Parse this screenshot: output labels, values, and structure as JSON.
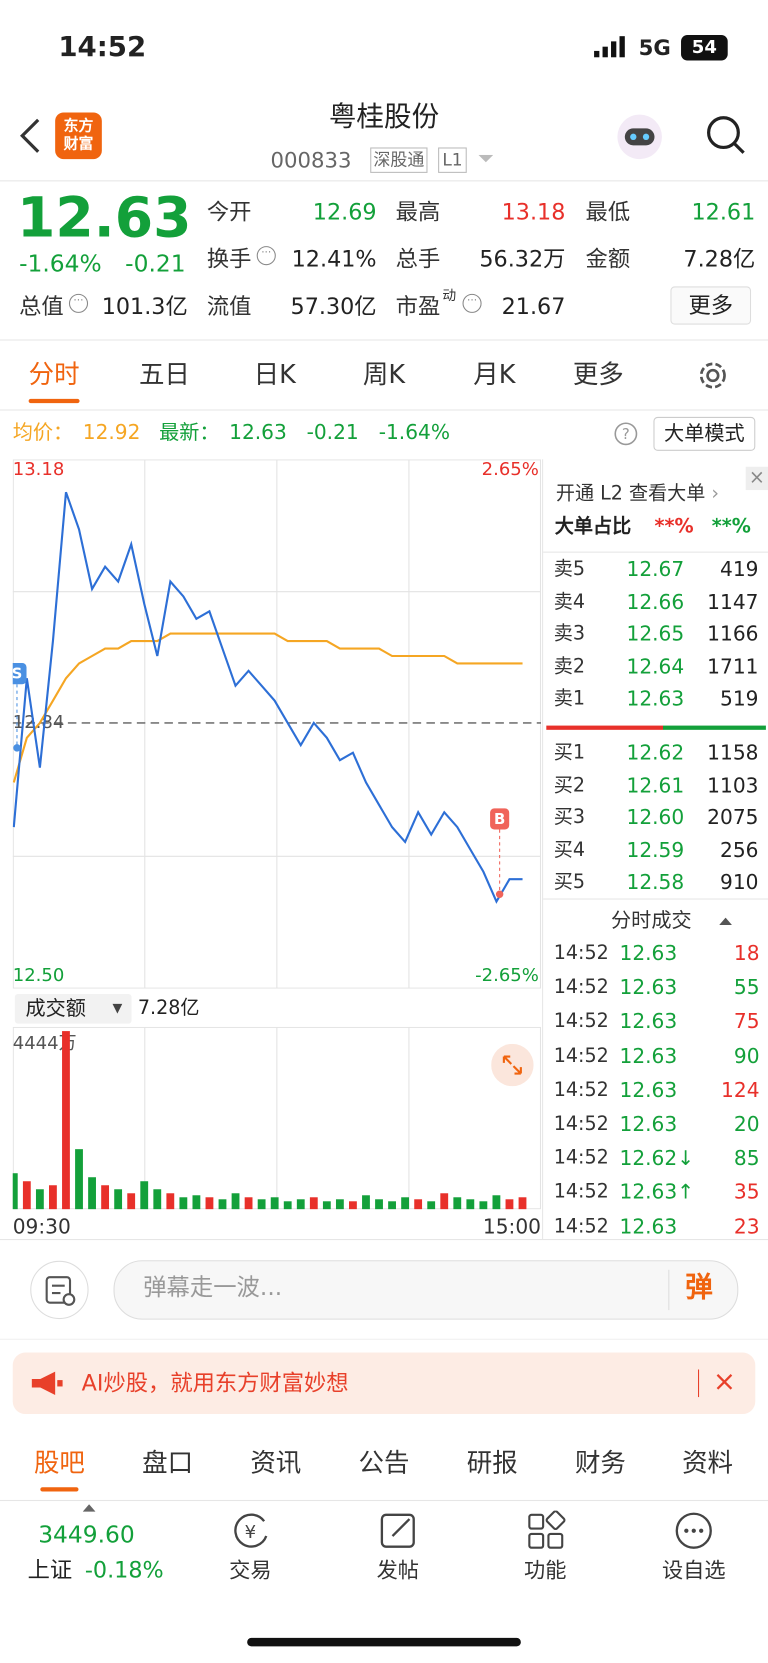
{
  "colors": {
    "up": "#e8302a",
    "down": "#13a03a",
    "accent": "#f0640f",
    "avg": "#f5a623",
    "price": "#2d6fd6"
  },
  "status": {
    "time": "14:52",
    "network": "5G",
    "battery": "54"
  },
  "header": {
    "logo": [
      "东方",
      "财富"
    ],
    "title": "粤桂股份",
    "code": "000833",
    "tags": [
      "深股通",
      "L1"
    ]
  },
  "quote": {
    "price": "12.63",
    "change_pct": "-1.64%",
    "change": "-0.21",
    "stats": [
      {
        "label": "今开",
        "value": "12.69",
        "tone": "down"
      },
      {
        "label": "最高",
        "value": "13.18",
        "tone": "up"
      },
      {
        "label": "最低",
        "value": "12.61",
        "tone": "down"
      },
      {
        "label": "换手",
        "value": "12.41%",
        "icon": true
      },
      {
        "label": "总手",
        "value": "56.32万"
      },
      {
        "label": "金额",
        "value": "7.28亿"
      },
      {
        "label": "总值",
        "value": "101.3亿",
        "icon": true
      },
      {
        "label": "流值",
        "value": "57.30亿"
      },
      {
        "label": "市盈",
        "sup": "动",
        "value": "21.67",
        "icon": true
      }
    ],
    "more": "更多"
  },
  "tabs": {
    "items": [
      "分时",
      "五日",
      "日K",
      "周K",
      "月K",
      "更多"
    ],
    "active": 0
  },
  "info": {
    "avg_label": "均价：",
    "avg": "12.92",
    "last_label": "最新：",
    "last": "12.63",
    "change": "-0.21",
    "change_pct": "-1.64%",
    "mode_button": "大单模式"
  },
  "chart": {
    "ylim": [
      12.5,
      13.18
    ],
    "yticks": [
      {
        "value": 12.5,
        "label": "12.50"
      },
      13.18
    ],
    "pct_labels": [
      "-2.65%",
      "2.65%"
    ],
    "prev_close": {
      "value": 12.84,
      "label": "12.84"
    },
    "price": [
      12.7,
      12.9,
      12.78,
      12.95,
      13.15,
      13.1,
      13.02,
      13.05,
      13.03,
      13.08,
      13.0,
      12.93,
      13.03,
      13.01,
      12.98,
      12.99,
      12.94,
      12.89,
      12.91,
      12.89,
      12.87,
      12.84,
      12.81,
      12.84,
      12.82,
      12.79,
      12.8,
      12.76,
      12.73,
      12.7,
      12.68,
      12.72,
      12.69,
      12.72,
      12.7,
      12.67,
      12.64,
      12.6,
      12.63,
      12.63
    ],
    "avg": [
      12.76,
      12.82,
      12.84,
      12.87,
      12.9,
      12.92,
      12.93,
      12.94,
      12.94,
      12.95,
      12.95,
      12.95,
      12.96,
      12.96,
      12.96,
      12.96,
      12.96,
      12.96,
      12.96,
      12.96,
      12.96,
      12.95,
      12.95,
      12.95,
      12.95,
      12.94,
      12.94,
      12.94,
      12.94,
      12.93,
      12.93,
      12.93,
      12.93,
      12.93,
      12.92,
      12.92,
      12.92,
      12.92,
      12.92,
      12.92
    ],
    "markers": [
      "S",
      "B"
    ],
    "x_labels": [
      "09:30",
      "15:00"
    ],
    "volume": {
      "label": "成交额",
      "total": "7.28亿",
      "ylim": [
        0,
        4444
      ],
      "max_label": "4444万",
      "values": [
        900,
        700,
        500,
        600,
        4444,
        1500,
        800,
        600,
        500,
        400,
        700,
        500,
        400,
        300,
        350,
        300,
        250,
        400,
        300,
        250,
        300,
        200,
        250,
        300,
        200,
        250,
        200,
        350,
        250,
        200,
        300,
        250,
        200,
        400,
        300,
        250,
        200,
        350,
        250,
        300
      ]
    }
  },
  "side": {
    "l2": "开通 L2 查看大单",
    "ratio_label": "大单占比",
    "ratio_up": "**%",
    "ratio_down": "**%",
    "asks": [
      {
        "label": "卖5",
        "price": "12.67",
        "volume": "419"
      },
      {
        "label": "卖4",
        "price": "12.66",
        "volume": "1147"
      },
      {
        "label": "卖3",
        "price": "12.65",
        "volume": "1166"
      },
      {
        "label": "卖2",
        "price": "12.64",
        "volume": "1711"
      },
      {
        "label": "卖1",
        "price": "12.63",
        "volume": "519"
      }
    ],
    "bids": [
      {
        "label": "买1",
        "price": "12.62",
        "volume": "1158"
      },
      {
        "label": "买2",
        "price": "12.61",
        "volume": "1103"
      },
      {
        "label": "买3",
        "price": "12.60",
        "volume": "2075"
      },
      {
        "label": "买4",
        "price": "12.59",
        "volume": "256"
      },
      {
        "label": "买5",
        "price": "12.58",
        "volume": "910"
      }
    ],
    "trades_title": "分时成交",
    "trades": [
      {
        "time": "14:52",
        "price": "12.63",
        "volume": "18",
        "tone": "up"
      },
      {
        "time": "14:52",
        "price": "12.63",
        "volume": "55",
        "tone": "down"
      },
      {
        "time": "14:52",
        "price": "12.63",
        "volume": "75",
        "tone": "up"
      },
      {
        "time": "14:52",
        "price": "12.63",
        "volume": "90",
        "tone": "down"
      },
      {
        "time": "14:52",
        "price": "12.63",
        "volume": "124",
        "tone": "up"
      },
      {
        "time": "14:52",
        "price": "12.63",
        "volume": "20",
        "tone": "down"
      },
      {
        "time": "14:52",
        "price": "12.62↓",
        "volume": "85",
        "tone": "down"
      },
      {
        "time": "14:52",
        "price": "12.63↑",
        "volume": "35",
        "tone": "up"
      },
      {
        "time": "14:52",
        "price": "12.63",
        "volume": "23",
        "tone": "up"
      }
    ]
  },
  "comment": {
    "placeholder": "弹幕走一波...",
    "button": "弹"
  },
  "banner": {
    "text": "AI炒股，就用东方财富妙想"
  },
  "sections": {
    "items": [
      "股吧",
      "盘口",
      "资讯",
      "公告",
      "研报",
      "财务",
      "资料"
    ],
    "active": 0
  },
  "nav": {
    "index_value": "3449.60",
    "index_name": "上证",
    "index_pct": "-0.18%",
    "items": [
      "交易",
      "发帖",
      "功能",
      "设自选"
    ]
  }
}
